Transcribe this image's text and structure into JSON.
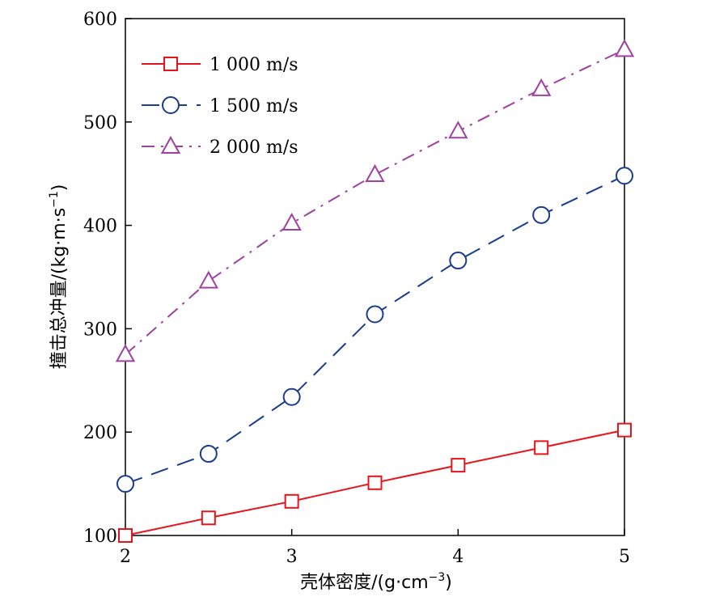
{
  "chart_data": {
    "type": "line",
    "xlabel_text": "壳体密度/(g·cm",
    "xlabel_sup": "−3",
    "xlabel_close": ")",
    "ylabel_text": "撞击总冲量/(kg·m·s",
    "ylabel_sup": "−1",
    "ylabel_close": ")",
    "xlim": [
      2,
      5
    ],
    "ylim": [
      100,
      600
    ],
    "xticks": [
      2,
      3,
      4,
      5
    ],
    "yticks": [
      100,
      200,
      300,
      400,
      500,
      600
    ],
    "x": [
      2,
      2.5,
      3,
      3.5,
      4,
      4.5,
      5
    ],
    "legend_position": "top-left",
    "series": [
      {
        "name": "1 000 m/s",
        "color": "#e8141b",
        "marker": "square",
        "line_style": "solid",
        "values": [
          100,
          117,
          133,
          151,
          168,
          185,
          202
        ]
      },
      {
        "name": "1 500 m/s",
        "color": "#1a3c8f",
        "marker": "circle",
        "line_style": "dashed",
        "values": [
          150,
          179,
          234,
          314,
          366,
          410,
          448
        ]
      },
      {
        "name": "2 000 m/s",
        "color": "#a040a0",
        "marker": "triangle",
        "line_style": "dash-dot",
        "values": [
          275,
          346,
          402,
          449,
          491,
          532,
          570
        ]
      }
    ]
  }
}
